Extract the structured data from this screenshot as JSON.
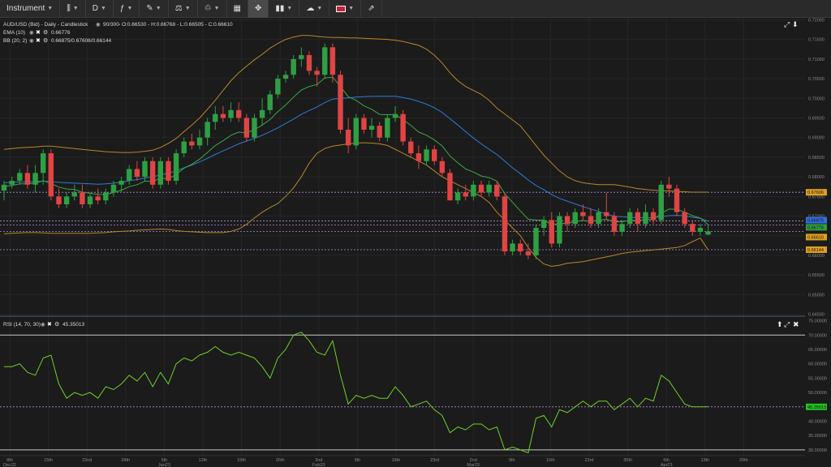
{
  "toolbar": {
    "instrument": "Instrument",
    "period": "D",
    "items": [
      {
        "name": "chart-type-candles-icon",
        "glyph": "⫼"
      },
      {
        "name": "indicators-icon",
        "glyph": "ƒ"
      },
      {
        "name": "draw-tool-icon",
        "glyph": "✎"
      },
      {
        "name": "studies-icon",
        "glyph": "⚗"
      },
      {
        "name": "trash-icon",
        "glyph": "🗑"
      },
      {
        "name": "layout-icon",
        "glyph": "▦"
      },
      {
        "name": "fullscreen-icon",
        "glyph": "✥"
      },
      {
        "name": "alerts-icon",
        "glyph": "📊"
      },
      {
        "name": "theme-icon",
        "glyph": "☁"
      },
      {
        "name": "language-flag-icon",
        "glyph": "🇬🇧"
      },
      {
        "name": "share-icon",
        "glyph": "⇗"
      }
    ]
  },
  "legend": {
    "symbol_line": "AUD/USD (Bid) - Daily - Candlestick",
    "bars_info": "90/300",
    "ohlc": "- O:0.66530 - H:0.66768 - L:0.66505 - C:0.66610",
    "ema_label": "EMA (10)",
    "ema_value": "0.66776",
    "bb_label": "BB (20, 2)",
    "bb_value": "0.66875/0.67606/0.66144",
    "rsi_label": "RSI (14, 70, 30)",
    "rsi_value": "45.35013"
  },
  "price_axis": [
    "0.72000",
    "0.71500",
    "0.71000",
    "0.70500",
    "0.70000",
    "0.69500",
    "0.69000",
    "0.68500",
    "0.68000",
    "0.67500",
    "0.67000",
    "0.66500",
    "0.66000",
    "0.65500",
    "0.65000",
    "0.64500"
  ],
  "rsi_axis": [
    "75.00000",
    "70.00000",
    "65.00000",
    "60.00000",
    "55.00000",
    "50.00000",
    "45.00000",
    "40.00000",
    "35.00000",
    "30.00000"
  ],
  "price_tags": [
    {
      "text": "0.67606",
      "bg": "#e0a020"
    },
    {
      "text": "0.66875",
      "bg": "#2f6fe0"
    },
    {
      "text": "0.66776",
      "bg": "#2e9e3e"
    },
    {
      "text": "0.66610",
      "bg": "#e0a020"
    },
    {
      "text": "0.66144",
      "bg": "#e0a020"
    }
  ],
  "rsi_tag": {
    "text": "45.35013",
    "bg": "#22c222"
  },
  "date_labels": [
    {
      "top": "8th",
      "bottom": "Dec22"
    },
    {
      "top": "15th",
      "bottom": ""
    },
    {
      "top": "22nd",
      "bottom": ""
    },
    {
      "top": "29th",
      "bottom": ""
    },
    {
      "top": "5th",
      "bottom": "Jan23"
    },
    {
      "top": "12th",
      "bottom": ""
    },
    {
      "top": "19th",
      "bottom": ""
    },
    {
      "top": "26th",
      "bottom": ""
    },
    {
      "top": "2nd",
      "bottom": "Feb23"
    },
    {
      "top": "9th",
      "bottom": ""
    },
    {
      "top": "16th",
      "bottom": ""
    },
    {
      "top": "23rd",
      "bottom": ""
    },
    {
      "top": "2nd",
      "bottom": "Mar23"
    },
    {
      "top": "9th",
      "bottom": ""
    },
    {
      "top": "16th",
      "bottom": ""
    },
    {
      "top": "23rd",
      "bottom": ""
    },
    {
      "top": "30th",
      "bottom": ""
    },
    {
      "top": "6th",
      "bottom": "Apr23"
    },
    {
      "top": "13th",
      "bottom": ""
    },
    {
      "top": "20th",
      "bottom": ""
    }
  ],
  "colors": {
    "up": "#2ea043",
    "down": "#e04444",
    "ema": "#3aa845",
    "bb_mid": "#2e7bd6",
    "bb_band": "#b8862c",
    "rsi": "#6fd02a",
    "level": "#b68ad8",
    "grid": "#262626"
  },
  "chart_data": [
    {
      "type": "candlestick",
      "title": "AUD/USD (Bid) - Daily - Candlestick",
      "ylim": [
        0.6445,
        0.7205
      ],
      "candles": [
        [
          0.6765,
          0.679,
          0.674,
          0.678
        ],
        [
          0.678,
          0.68,
          0.677,
          0.679
        ],
        [
          0.679,
          0.682,
          0.678,
          0.681
        ],
        [
          0.681,
          0.683,
          0.677,
          0.678
        ],
        [
          0.678,
          0.683,
          0.676,
          0.681
        ],
        [
          0.681,
          0.687,
          0.678,
          0.686
        ],
        [
          0.686,
          0.687,
          0.674,
          0.675
        ],
        [
          0.675,
          0.677,
          0.672,
          0.673
        ],
        [
          0.673,
          0.676,
          0.672,
          0.675
        ],
        [
          0.675,
          0.678,
          0.674,
          0.676
        ],
        [
          0.676,
          0.678,
          0.672,
          0.673
        ],
        [
          0.673,
          0.676,
          0.672,
          0.675
        ],
        [
          0.675,
          0.677,
          0.673,
          0.674
        ],
        [
          0.674,
          0.677,
          0.673,
          0.676
        ],
        [
          0.676,
          0.679,
          0.675,
          0.678
        ],
        [
          0.678,
          0.68,
          0.676,
          0.679
        ],
        [
          0.679,
          0.683,
          0.678,
          0.682
        ],
        [
          0.682,
          0.684,
          0.679,
          0.68
        ],
        [
          0.68,
          0.685,
          0.679,
          0.684
        ],
        [
          0.684,
          0.685,
          0.677,
          0.678
        ],
        [
          0.678,
          0.685,
          0.677,
          0.684
        ],
        [
          0.684,
          0.685,
          0.678,
          0.679
        ],
        [
          0.679,
          0.687,
          0.678,
          0.686
        ],
        [
          0.686,
          0.69,
          0.685,
          0.689
        ],
        [
          0.689,
          0.691,
          0.687,
          0.688
        ],
        [
          0.688,
          0.692,
          0.687,
          0.69
        ],
        [
          0.69,
          0.695,
          0.688,
          0.694
        ],
        [
          0.694,
          0.698,
          0.692,
          0.696
        ],
        [
          0.696,
          0.698,
          0.694,
          0.695
        ],
        [
          0.695,
          0.699,
          0.694,
          0.697
        ],
        [
          0.697,
          0.699,
          0.694,
          0.695
        ],
        [
          0.695,
          0.696,
          0.689,
          0.69
        ],
        [
          0.69,
          0.696,
          0.689,
          0.695
        ],
        [
          0.695,
          0.7,
          0.693,
          0.697
        ],
        [
          0.697,
          0.702,
          0.696,
          0.701
        ],
        [
          0.701,
          0.706,
          0.7,
          0.705
        ],
        [
          0.705,
          0.707,
          0.704,
          0.706
        ],
        [
          0.706,
          0.711,
          0.705,
          0.71
        ],
        [
          0.71,
          0.713,
          0.708,
          0.711
        ],
        [
          0.711,
          0.712,
          0.706,
          0.707
        ],
        [
          0.707,
          0.708,
          0.703,
          0.706
        ],
        [
          0.706,
          0.714,
          0.705,
          0.713
        ],
        [
          0.713,
          0.714,
          0.704,
          0.706
        ],
        [
          0.706,
          0.707,
          0.691,
          0.692
        ],
        [
          0.692,
          0.695,
          0.686,
          0.688
        ],
        [
          0.688,
          0.696,
          0.687,
          0.695
        ],
        [
          0.695,
          0.696,
          0.691,
          0.692
        ],
        [
          0.692,
          0.695,
          0.69,
          0.693
        ],
        [
          0.693,
          0.694,
          0.689,
          0.69
        ],
        [
          0.69,
          0.696,
          0.689,
          0.695
        ],
        [
          0.695,
          0.698,
          0.694,
          0.696
        ],
        [
          0.696,
          0.697,
          0.688,
          0.689
        ],
        [
          0.689,
          0.69,
          0.685,
          0.686
        ],
        [
          0.686,
          0.688,
          0.682,
          0.684
        ],
        [
          0.684,
          0.688,
          0.683,
          0.687
        ],
        [
          0.687,
          0.688,
          0.683,
          0.684
        ],
        [
          0.684,
          0.685,
          0.68,
          0.681
        ],
        [
          0.681,
          0.682,
          0.674,
          0.674
        ],
        [
          0.674,
          0.677,
          0.673,
          0.676
        ],
        [
          0.676,
          0.678,
          0.674,
          0.675
        ],
        [
          0.675,
          0.679,
          0.674,
          0.678
        ],
        [
          0.678,
          0.679,
          0.675,
          0.676
        ],
        [
          0.676,
          0.679,
          0.675,
          0.678
        ],
        [
          0.678,
          0.679,
          0.674,
          0.675
        ],
        [
          0.675,
          0.676,
          0.66,
          0.661
        ],
        [
          0.661,
          0.664,
          0.66,
          0.663
        ],
        [
          0.663,
          0.664,
          0.66,
          0.661
        ],
        [
          0.661,
          0.663,
          0.659,
          0.66
        ],
        [
          0.66,
          0.668,
          0.659,
          0.667
        ],
        [
          0.667,
          0.67,
          0.665,
          0.669
        ],
        [
          0.669,
          0.671,
          0.662,
          0.663
        ],
        [
          0.663,
          0.671,
          0.662,
          0.67
        ],
        [
          0.67,
          0.671,
          0.666,
          0.668
        ],
        [
          0.668,
          0.672,
          0.667,
          0.671
        ],
        [
          0.671,
          0.673,
          0.669,
          0.67
        ],
        [
          0.67,
          0.672,
          0.667,
          0.668
        ],
        [
          0.668,
          0.672,
          0.667,
          0.671
        ],
        [
          0.671,
          0.676,
          0.669,
          0.67
        ],
        [
          0.67,
          0.671,
          0.665,
          0.666
        ],
        [
          0.666,
          0.669,
          0.665,
          0.668
        ],
        [
          0.668,
          0.672,
          0.667,
          0.671
        ],
        [
          0.671,
          0.672,
          0.666,
          0.668
        ],
        [
          0.668,
          0.673,
          0.667,
          0.671
        ],
        [
          0.671,
          0.672,
          0.668,
          0.669
        ],
        [
          0.669,
          0.679,
          0.668,
          0.678
        ],
        [
          0.678,
          0.68,
          0.675,
          0.677
        ],
        [
          0.677,
          0.678,
          0.67,
          0.671
        ],
        [
          0.671,
          0.672,
          0.667,
          0.668
        ],
        [
          0.668,
          0.669,
          0.665,
          0.666
        ],
        [
          0.666,
          0.668,
          0.665,
          0.667
        ],
        [
          0.6653,
          0.6677,
          0.6651,
          0.6661
        ]
      ],
      "ema": [
        0.6775,
        0.6778,
        0.6782,
        0.6782,
        0.6784,
        0.679,
        0.6783,
        0.6774,
        0.6769,
        0.6768,
        0.6761,
        0.6758,
        0.6755,
        0.6755,
        0.676,
        0.6766,
        0.6775,
        0.678,
        0.6789,
        0.6788,
        0.6797,
        0.6795,
        0.6806,
        0.6822,
        0.6832,
        0.6845,
        0.6862,
        0.688,
        0.6892,
        0.6906,
        0.6914,
        0.6912,
        0.692,
        0.6932,
        0.6946,
        0.6966,
        0.6983,
        0.7003,
        0.7021,
        0.703,
        0.7035,
        0.7052,
        0.7054,
        0.703,
        0.7004,
        0.6995,
        0.6981,
        0.6972,
        0.6959,
        0.6958,
        0.6959,
        0.6946,
        0.6931,
        0.6914,
        0.6906,
        0.6894,
        0.6879,
        0.6853,
        0.6836,
        0.682,
        0.6812,
        0.6802,
        0.6798,
        0.6789,
        0.6757,
        0.6735,
        0.6713,
        0.6692,
        0.669,
        0.669,
        0.6678,
        0.6682,
        0.6681,
        0.6686,
        0.6689,
        0.6686,
        0.669,
        0.6692,
        0.6686,
        0.6685,
        0.669,
        0.6688,
        0.6692,
        0.6691,
        0.6707,
        0.6718,
        0.6717,
        0.671,
        0.6701,
        0.6695,
        0.6678
      ],
      "bb_mid": [
        0.6785,
        0.6786,
        0.6787,
        0.6787,
        0.6788,
        0.6789,
        0.6788,
        0.6786,
        0.6785,
        0.6784,
        0.6783,
        0.6782,
        0.6781,
        0.6782,
        0.6784,
        0.6786,
        0.679,
        0.6793,
        0.6797,
        0.68,
        0.6805,
        0.6809,
        0.6815,
        0.6823,
        0.683,
        0.6838,
        0.6847,
        0.6857,
        0.6866,
        0.6875,
        0.6884,
        0.6891,
        0.6898,
        0.6906,
        0.6915,
        0.6925,
        0.6936,
        0.6947,
        0.6959,
        0.6969,
        0.6978,
        0.6989,
        0.6998,
        0.7,
        0.7001,
        0.7003,
        0.7004,
        0.7005,
        0.7005,
        0.7005,
        0.7005,
        0.7002,
        0.6998,
        0.6992,
        0.6985,
        0.6976,
        0.6964,
        0.6948,
        0.6932,
        0.6915,
        0.6899,
        0.6884,
        0.687,
        0.6857,
        0.684,
        0.6823,
        0.6808,
        0.6792,
        0.6778,
        0.6767,
        0.6755,
        0.6745,
        0.6738,
        0.6731,
        0.6724,
        0.6718,
        0.6712,
        0.6705,
        0.67,
        0.6698,
        0.6697,
        0.6696,
        0.6696,
        0.6696,
        0.6699,
        0.6701,
        0.6702,
        0.6701,
        0.6697,
        0.6694,
        0.6687
      ],
      "bb_upper": [
        0.687,
        0.6872,
        0.6874,
        0.6875,
        0.6876,
        0.6878,
        0.6878,
        0.6876,
        0.6874,
        0.6872,
        0.687,
        0.6868,
        0.6866,
        0.6864,
        0.6863,
        0.6862,
        0.6862,
        0.6863,
        0.6865,
        0.6868,
        0.6875,
        0.6885,
        0.6898,
        0.6915,
        0.6932,
        0.695,
        0.6972,
        0.6995,
        0.702,
        0.7045,
        0.7065,
        0.7082,
        0.7098,
        0.7112,
        0.7128,
        0.714,
        0.715,
        0.7156,
        0.716,
        0.716,
        0.7158,
        0.7156,
        0.7155,
        0.7155,
        0.7154,
        0.7154,
        0.7153,
        0.7152,
        0.7151,
        0.715,
        0.7148,
        0.7145,
        0.714,
        0.7135,
        0.7125,
        0.711,
        0.709,
        0.7065,
        0.7045,
        0.703,
        0.702,
        0.701,
        0.6995,
        0.6975,
        0.696,
        0.6945,
        0.693,
        0.6905,
        0.688,
        0.6855,
        0.6835,
        0.6815,
        0.68,
        0.679,
        0.6785,
        0.6782,
        0.678,
        0.678,
        0.678,
        0.6777,
        0.6774,
        0.677,
        0.6768,
        0.6766,
        0.6765,
        0.6764,
        0.6763,
        0.6762,
        0.6761,
        0.6761,
        0.6761
      ],
      "bb_lower": [
        0.6655,
        0.6656,
        0.6657,
        0.6658,
        0.6658,
        0.6657,
        0.6656,
        0.6656,
        0.6656,
        0.6656,
        0.6656,
        0.6656,
        0.6657,
        0.6658,
        0.666,
        0.6661,
        0.6662,
        0.6664,
        0.6665,
        0.6666,
        0.6667,
        0.6666,
        0.6663,
        0.6661,
        0.666,
        0.6659,
        0.6658,
        0.6658,
        0.6658,
        0.6661,
        0.6667,
        0.6679,
        0.6695,
        0.671,
        0.6722,
        0.6732,
        0.675,
        0.6772,
        0.68,
        0.6835,
        0.686,
        0.6872,
        0.6878,
        0.6881,
        0.6884,
        0.6886,
        0.6887,
        0.6886,
        0.6884,
        0.688,
        0.687,
        0.686,
        0.685,
        0.684,
        0.683,
        0.6815,
        0.68,
        0.679,
        0.678,
        0.677,
        0.676,
        0.675,
        0.6735,
        0.671,
        0.669,
        0.667,
        0.665,
        0.662,
        0.6595,
        0.6578,
        0.6572,
        0.6575,
        0.658,
        0.6582,
        0.6584,
        0.6588,
        0.6592,
        0.6596,
        0.66,
        0.6605,
        0.6608,
        0.661,
        0.6612,
        0.6614,
        0.6616,
        0.6618,
        0.662,
        0.6625,
        0.6635,
        0.6644,
        0.6614
      ],
      "levels": [
        0.67606,
        0.66875,
        0.66776,
        0.6661,
        0.66144
      ]
    },
    {
      "type": "line",
      "title": "RSI (14, 70, 30)",
      "ylim": [
        28,
        76
      ],
      "levels": [
        70,
        30
      ],
      "values": [
        59,
        59,
        60,
        57,
        56,
        62,
        63,
        53,
        48,
        50,
        49,
        50,
        48,
        52,
        51,
        53,
        56,
        54,
        57,
        52,
        57,
        53,
        60,
        62,
        61,
        63,
        64,
        66,
        64,
        63,
        64,
        63,
        62,
        59,
        55,
        62,
        65,
        70,
        71,
        68,
        64,
        63,
        68,
        56,
        46,
        49,
        48,
        49,
        48,
        48,
        52,
        49,
        45,
        46,
        47,
        44,
        42,
        36,
        38,
        37,
        39,
        39,
        37,
        38,
        30,
        31,
        30,
        29,
        41,
        42,
        38,
        44,
        43,
        45,
        47,
        45,
        47,
        47,
        44,
        46,
        48,
        45,
        48,
        47,
        56,
        54,
        50,
        46,
        45,
        45,
        45
      ]
    }
  ]
}
